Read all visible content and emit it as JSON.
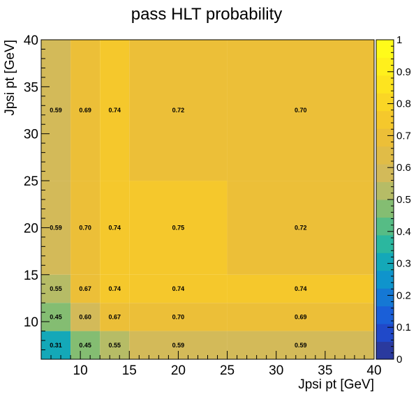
{
  "chart_data": {
    "type": "heatmap",
    "title": "pass HLT probability",
    "xlabel": "Jpsi pt [GeV]",
    "ylabel": "Jpsi pt [GeV]",
    "xlim": [
      6,
      40
    ],
    "ylim": [
      6,
      40
    ],
    "x_edges": [
      6,
      9,
      12,
      15,
      25,
      40
    ],
    "y_edges": [
      6,
      9,
      12,
      15,
      25,
      40
    ],
    "x_ticks": [
      10,
      15,
      20,
      25,
      30,
      35,
      40
    ],
    "y_ticks": [
      10,
      15,
      20,
      25,
      30,
      35,
      40
    ],
    "values": [
      [
        0.31,
        0.45,
        0.55,
        0.59,
        0.59
      ],
      [
        0.45,
        0.6,
        0.67,
        0.7,
        0.69
      ],
      [
        0.55,
        0.67,
        0.74,
        0.74,
        0.74
      ],
      [
        0.59,
        0.7,
        0.74,
        0.75,
        0.72
      ],
      [
        0.59,
        0.69,
        0.74,
        0.72,
        0.7
      ]
    ],
    "cell_labels": [
      [
        "0.31",
        "0.45",
        "0.55",
        "0.59",
        "0.59"
      ],
      [
        "0.45",
        "0.60",
        "0.67",
        "0.70",
        "0.69"
      ],
      [
        "0.55",
        "0.67",
        "0.74",
        "0.74",
        "0.74"
      ],
      [
        "0.59",
        "0.70",
        "0.74",
        "0.75",
        "0.72"
      ],
      [
        "0.59",
        "0.69",
        "0.74",
        "0.72",
        "0.70"
      ]
    ],
    "colorbar": {
      "range": [
        0,
        1
      ],
      "ticks": [
        "0",
        "0.1",
        "0.2",
        "0.3",
        "0.4",
        "0.5",
        "0.6",
        "0.7",
        "0.8",
        "0.9",
        "1"
      ],
      "bands": [
        "#2a3a9e",
        "#2049c9",
        "#1a5fd8",
        "#1578d4",
        "#0f94cc",
        "#14a8b8",
        "#2bb79f",
        "#56bc85",
        "#84bd72",
        "#b6bc66",
        "#d3ba59",
        "#e0bc47",
        "#ecbf38",
        "#f5c82c",
        "#fad625",
        "#fde41f",
        "#fff01c",
        "#fffb1a"
      ]
    },
    "grid": false
  }
}
